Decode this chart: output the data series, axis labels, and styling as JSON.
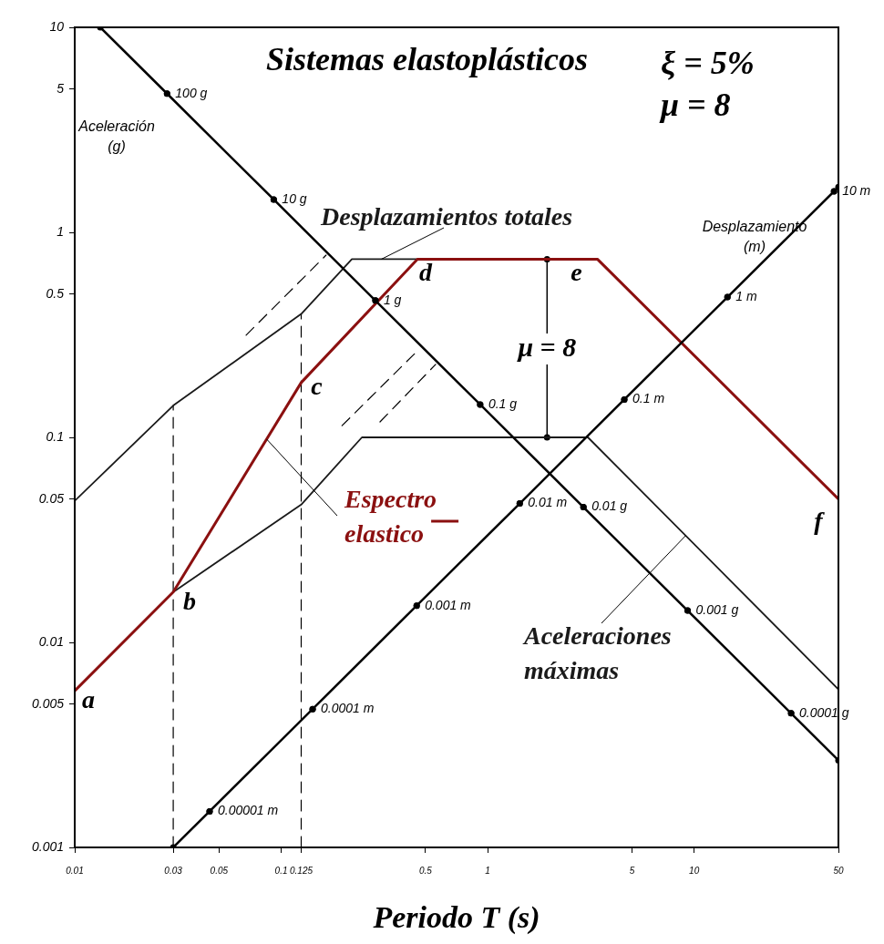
{
  "chart_data": {
    "type": "line",
    "title": "Sistemas elastoplásticos",
    "xlabel": "Periodo T (s)",
    "log": "xy",
    "xlim": [
      0.01,
      50
    ],
    "ylim": [
      0.001,
      10
    ],
    "xticks": [
      0.01,
      0.03,
      0.05,
      0.1,
      0.125,
      0.5,
      1,
      5,
      10,
      50
    ],
    "yticks": [
      0.001,
      0.005,
      0.01,
      0.05,
      0.1,
      0.5,
      1,
      5,
      10
    ],
    "annotations": [
      "ξ = 5%",
      "μ = 8",
      "Aceleración\n(g)",
      "Desplazamiento\n(m)",
      {
        "text": "μ = 8",
        "x": 1.94,
        "y": 0.27
      },
      {
        "text": "100 g",
        "x": 0.028,
        "y": 4.75
      },
      {
        "text": "10 g",
        "x": 0.092,
        "y": 1.446
      },
      {
        "text": "1 g",
        "x": 0.286,
        "y": 0.465
      },
      {
        "text": "0.1 g",
        "x": 0.92,
        "y": 0.1446
      },
      {
        "text": "0.01 g",
        "x": 2.91,
        "y": 0.0457
      },
      {
        "text": "0.001 g",
        "x": 9.3,
        "y": 0.0143
      },
      {
        "text": "0.0001 g",
        "x": 29.5,
        "y": 0.00451
      },
      {
        "text": "0.00001 m",
        "x": 0.045,
        "y": 0.0015
      },
      {
        "text": "0.0001 m",
        "x": 0.142,
        "y": 0.00473
      },
      {
        "text": "0.001 m",
        "x": 0.453,
        "y": 0.0151
      },
      {
        "text": "0.01 m",
        "x": 1.43,
        "y": 0.0476
      },
      {
        "text": "0.1 m",
        "x": 4.59,
        "y": 0.153
      },
      {
        "text": "1 m",
        "x": 14.5,
        "y": 0.483
      },
      {
        "text": "10 m",
        "x": 47.6,
        "y": 1.585
      }
    ],
    "series": [
      {
        "type": "line",
        "color": "#000000",
        "marker": "circle",
        "x": [
          0.0133,
          0.028,
          0.092,
          0.286,
          0.92,
          2.91,
          9.3,
          29.5,
          50
        ],
        "values": [
          10,
          4.75,
          1.446,
          0.465,
          0.1446,
          0.0457,
          0.0143,
          0.00451,
          0.00266
        ]
      },
      {
        "type": "line",
        "color": "#000000",
        "marker": "circle",
        "x": [
          0.03,
          0.045,
          0.142,
          0.453,
          1.43,
          4.59,
          14.5,
          47.6,
          50
        ],
        "values": [
          0.001,
          0.0015,
          0.00473,
          0.0151,
          0.0476,
          0.153,
          0.483,
          1.585,
          1.665
        ]
      },
      {
        "type": "line",
        "name": "Espectro elastico",
        "color": "#8b1010",
        "x": [
          0.01,
          0.03,
          0.125,
          0.457,
          3.4,
          50
        ],
        "values": [
          0.0058,
          0.0176,
          0.185,
          0.74,
          0.74,
          0.05
        ],
        "value_labels": [
          "a",
          "b",
          "c",
          "d",
          "e",
          "f"
        ]
      },
      {
        "type": "line",
        "name": "Desplazamientos totales",
        "color": "#1a1a1a",
        "x": [
          0.01,
          0.03,
          0.125,
          0.22,
          0.457
        ],
        "values": [
          0.049,
          0.143,
          0.4,
          0.74,
          0.74
        ]
      },
      {
        "type": "line",
        "name": "Aceleraciones máximas",
        "color": "#1a1a1a",
        "x": [
          0.03,
          0.125,
          0.246,
          3.06,
          50
        ],
        "values": [
          0.0176,
          0.047,
          0.1,
          0.1,
          0.0059
        ]
      },
      {
        "type": "line",
        "color": "#000000",
        "line_style": "dashed",
        "x": [
          0.03,
          0.03
        ],
        "values": [
          0.001,
          0.143
        ]
      },
      {
        "type": "line",
        "color": "#000000",
        "line_style": "dashed",
        "x": [
          0.125,
          0.125
        ],
        "values": [
          0.001,
          0.4
        ]
      },
      {
        "type": "line",
        "color": "#000000",
        "line_style": "dashed",
        "x": [
          0.0676,
          0.165
        ],
        "values": [
          0.315,
          0.774
        ]
      },
      {
        "type": "line",
        "color": "#000000",
        "line_style": "dashed",
        "x": [
          0.197,
          0.467
        ],
        "values": [
          0.114,
          0.27
        ]
      },
      {
        "type": "line",
        "color": "#000000",
        "line_style": "dashed",
        "x": [
          0.301,
          0.56
        ],
        "values": [
          0.119,
          0.227
        ]
      },
      {
        "type": "line",
        "color": "#000000",
        "marker": "circle",
        "x": [
          1.94,
          1.94
        ],
        "values": [
          0.1,
          0.74
        ]
      }
    ]
  }
}
